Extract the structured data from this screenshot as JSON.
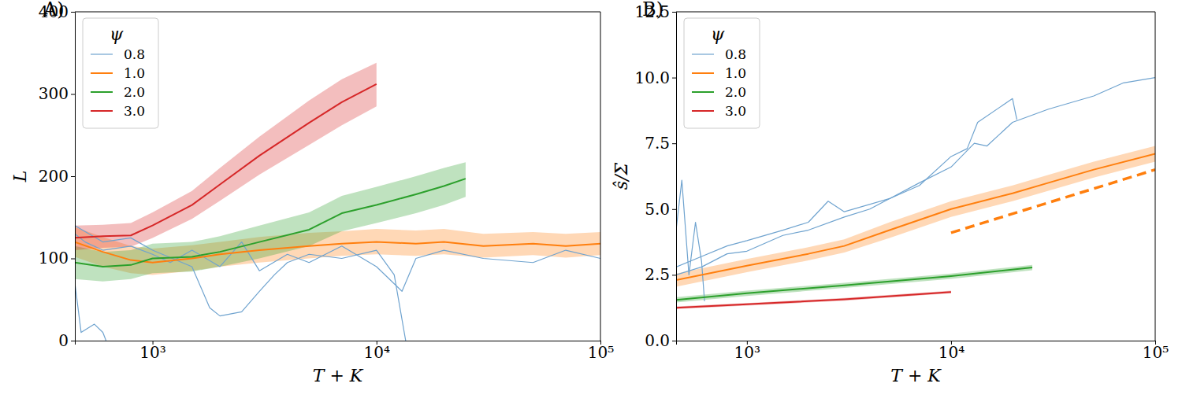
{
  "chart_data": [
    {
      "type": "line",
      "title": "A)",
      "xlabel": "T + K",
      "ylabel": "L",
      "log": "x",
      "legend": "upper left",
      "legend_title": "ψ",
      "xlim": [
        450,
        100000
      ],
      "xticks": [
        {
          "value": 1000,
          "label": "10³"
        },
        {
          "value": 10000,
          "label": "10⁴"
        },
        {
          "value": 100000,
          "label": "10⁵"
        }
      ],
      "ylim": [
        0,
        400
      ],
      "yticks": [
        0,
        100,
        200,
        300,
        400
      ],
      "series": [
        {
          "name": "0.8",
          "color": "#6fa3cf",
          "x": [
            450,
            500,
            600,
            800,
            1000,
            1200,
            1500,
            2000,
            2500,
            3000,
            4000,
            5000,
            7000,
            10000,
            13000,
            15000,
            20000,
            30000,
            50000,
            70000,
            100000
          ],
          "values": [
            130,
            120,
            110,
            115,
            105,
            95,
            110,
            90,
            120,
            85,
            105,
            95,
            115,
            90,
            60,
            100,
            110,
            100,
            95,
            110,
            100
          ]
        },
        {
          "color": "#6fa3cf",
          "x": [
            420,
            450,
            480,
            550,
            600,
            620
          ],
          "values": [
            60,
            70,
            10,
            20,
            10,
            0
          ]
        },
        {
          "color": "#6fa3cf",
          "x": [
            450,
            600,
            800,
            1000,
            1500,
            1800,
            2000,
            2500,
            3000,
            3500,
            4000,
            5000,
            7000,
            10000,
            12000,
            13500
          ],
          "values": [
            140,
            120,
            125,
            110,
            90,
            40,
            30,
            35,
            60,
            80,
            95,
            105,
            100,
            110,
            80,
            0
          ]
        },
        {
          "name": "1.0",
          "color": "#ff7f0e",
          "x": [
            450,
            600,
            800,
            1000,
            1500,
            2000,
            3000,
            5000,
            7000,
            10000,
            15000,
            20000,
            30000,
            50000,
            70000,
            100000
          ],
          "values": [
            120,
            108,
            98,
            95,
            100,
            105,
            110,
            115,
            118,
            120,
            118,
            120,
            115,
            118,
            115,
            118
          ],
          "lower": [
            102,
            90,
            82,
            80,
            85,
            90,
            95,
            100,
            103,
            105,
            103,
            105,
            101,
            104,
            101,
            104
          ],
          "upper": [
            138,
            126,
            115,
            112,
            116,
            120,
            126,
            131,
            133,
            136,
            134,
            136,
            130,
            132,
            130,
            132
          ]
        },
        {
          "name": "2.0",
          "color": "#2ca02c",
          "x": [
            450,
            600,
            800,
            1000,
            1500,
            2000,
            3000,
            5000,
            7000,
            10000,
            15000,
            20000,
            25000
          ],
          "values": [
            95,
            90,
            92,
            100,
            102,
            108,
            120,
            135,
            155,
            165,
            178,
            188,
            197
          ],
          "lower": [
            75,
            72,
            75,
            82,
            84,
            90,
            100,
            115,
            133,
            143,
            155,
            165,
            175
          ],
          "upper": [
            115,
            108,
            110,
            118,
            120,
            127,
            140,
            156,
            176,
            187,
            200,
            210,
            217
          ]
        },
        {
          "name": "3.0",
          "color": "#d62728",
          "x": [
            450,
            600,
            800,
            1000,
            1500,
            2000,
            3000,
            5000,
            7000,
            10000
          ],
          "values": [
            125,
            127,
            128,
            140,
            165,
            190,
            225,
            265,
            290,
            312
          ],
          "lower": [
            110,
            113,
            114,
            125,
            148,
            170,
            202,
            238,
            262,
            285
          ],
          "upper": [
            140,
            141,
            143,
            156,
            182,
            210,
            248,
            292,
            318,
            338
          ]
        }
      ]
    },
    {
      "type": "line",
      "title": "B)",
      "xlabel": "T + K",
      "ylabel": "ŝ/Σ",
      "log": "x",
      "legend": "upper left",
      "legend_title": "ψ",
      "xlim": [
        450,
        100000
      ],
      "xticks": [
        {
          "value": 1000,
          "label": "10³"
        },
        {
          "value": 10000,
          "label": "10⁴"
        },
        {
          "value": 100000,
          "label": "10⁵"
        }
      ],
      "ylim": [
        0,
        12.5
      ],
      "yticks": [
        {
          "value": 0,
          "label": "0.0"
        },
        2.5,
        {
          "value": 5,
          "label": "5.0"
        },
        7.5,
        {
          "value": 10,
          "label": "10.0"
        },
        12.5
      ],
      "series": [
        {
          "name": "0.8",
          "color": "#6fa3cf",
          "x": [
            450,
            600,
            800,
            1000,
            1500,
            2000,
            3000,
            4000,
            5000,
            7000,
            10000,
            13000,
            15000,
            20000,
            30000,
            50000,
            70000,
            100000
          ],
          "values": [
            2.5,
            2.8,
            3.3,
            3.4,
            4.0,
            4.2,
            4.7,
            5.0,
            5.4,
            6.0,
            6.6,
            7.5,
            7.4,
            8.3,
            8.8,
            9.3,
            9.8,
            10.0
          ]
        },
        {
          "color": "#6fa3cf",
          "x": [
            450,
            480,
            520,
            560,
            600,
            620
          ],
          "values": [
            4.2,
            6.1,
            2.5,
            4.5,
            3.0,
            1.5
          ]
        },
        {
          "color": "#6fa3cf",
          "x": [
            450,
            600,
            800,
            1000,
            1500,
            2000,
            2500,
            3000,
            5000,
            7000,
            10000,
            12000,
            13500,
            20000,
            21000
          ],
          "values": [
            2.8,
            3.2,
            3.6,
            3.8,
            4.2,
            4.5,
            5.3,
            4.9,
            5.4,
            5.9,
            7.0,
            7.3,
            8.3,
            9.2,
            8.4
          ]
        },
        {
          "name": "1.0",
          "color": "#ff7f0e",
          "x": [
            450,
            1000,
            2000,
            3000,
            5000,
            10000,
            20000,
            30000,
            50000,
            100000
          ],
          "values": [
            2.3,
            2.85,
            3.3,
            3.6,
            4.2,
            5.0,
            5.6,
            6.0,
            6.5,
            7.1
          ],
          "lower": [
            2.05,
            2.6,
            3.05,
            3.35,
            3.9,
            4.7,
            5.3,
            5.7,
            6.2,
            6.8
          ],
          "upper": [
            2.55,
            3.1,
            3.55,
            3.85,
            4.5,
            5.3,
            5.9,
            6.3,
            6.8,
            7.4
          ]
        },
        {
          "name": "2.0",
          "color": "#2ca02c",
          "x": [
            450,
            1000,
            3000,
            10000,
            25000
          ],
          "values": [
            1.55,
            1.8,
            2.1,
            2.45,
            2.78
          ],
          "lower": [
            1.45,
            1.7,
            2.0,
            2.35,
            2.68
          ],
          "upper": [
            1.65,
            1.9,
            2.2,
            2.55,
            2.88
          ]
        },
        {
          "name": "3.0",
          "color": "#d62728",
          "x": [
            450,
            1000,
            3000,
            10000
          ],
          "values": [
            1.25,
            1.38,
            1.57,
            1.85
          ],
          "lower": [
            1.2,
            1.33,
            1.52,
            1.8
          ],
          "upper": [
            1.3,
            1.43,
            1.62,
            1.9
          ]
        },
        {
          "color": "#ff7f0e",
          "line_style": "dashed",
          "x": [
            10000,
            100000
          ],
          "values": [
            4.1,
            6.5
          ]
        }
      ]
    }
  ]
}
